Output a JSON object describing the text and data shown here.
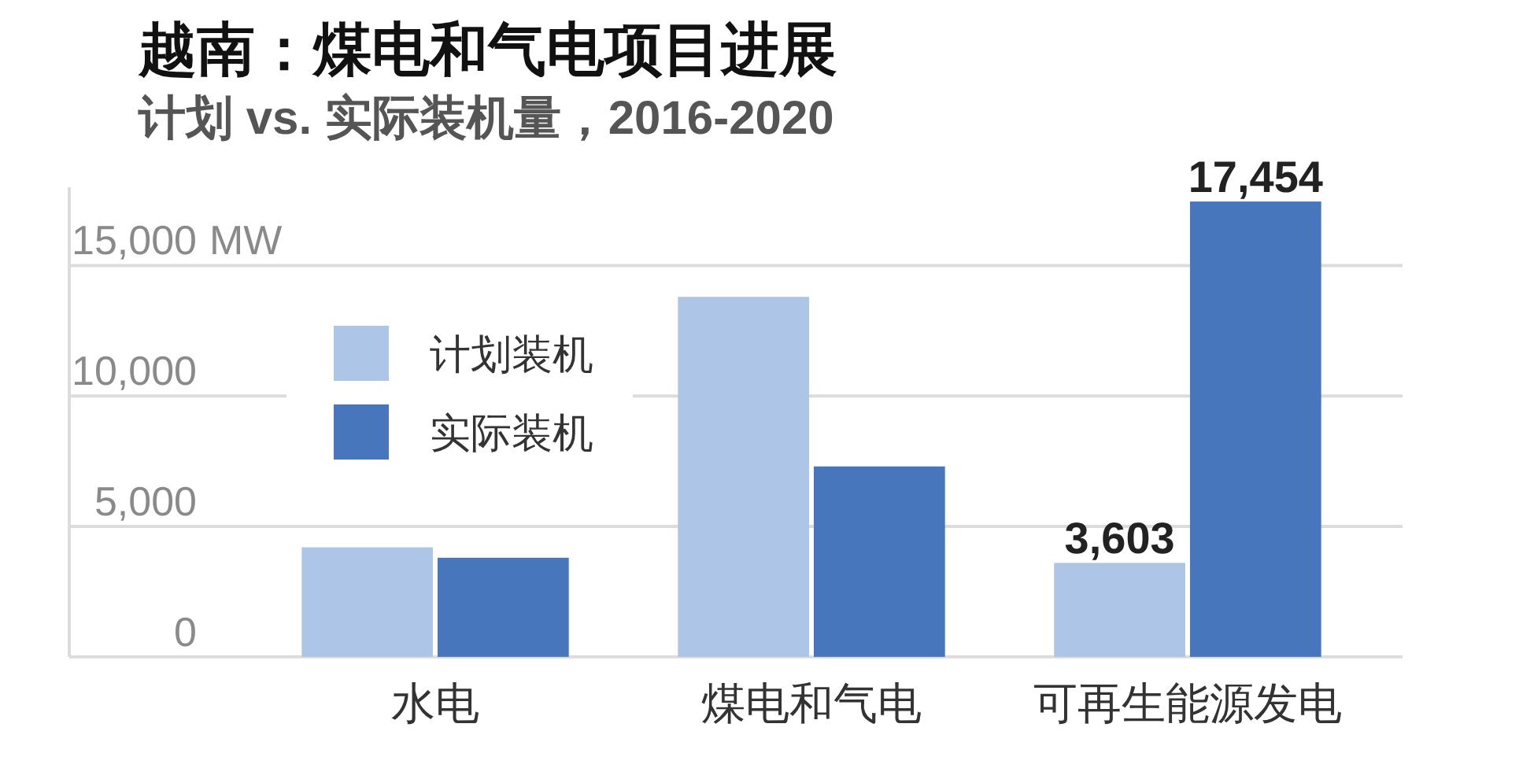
{
  "chart_data": {
    "type": "bar",
    "title": "越南：煤电和气电项目进展",
    "subtitle": "计划 vs. 实际装机量，2016-2020",
    "ylabel": "MW",
    "categories": [
      "水电",
      "煤电和气电",
      "可再生能源发电"
    ],
    "series": [
      {
        "name": "计划装机",
        "color": "#adc6e8",
        "values": [
          4200,
          13800,
          3603
        ],
        "value_labels": [
          null,
          null,
          "3,603"
        ]
      },
      {
        "name": "实际装机",
        "color": "#4876bc",
        "values": [
          3800,
          7300,
          17454
        ],
        "value_labels": [
          null,
          null,
          "17,454"
        ]
      }
    ],
    "ylim": [
      0,
      18000
    ],
    "yticks": [
      0,
      {
        "value": 5000,
        "label": "5,000"
      },
      {
        "value": 10000,
        "label": "10,000"
      },
      {
        "value": 15000,
        "label": "15,000"
      }
    ],
    "grid": "y",
    "legend": "top left"
  }
}
